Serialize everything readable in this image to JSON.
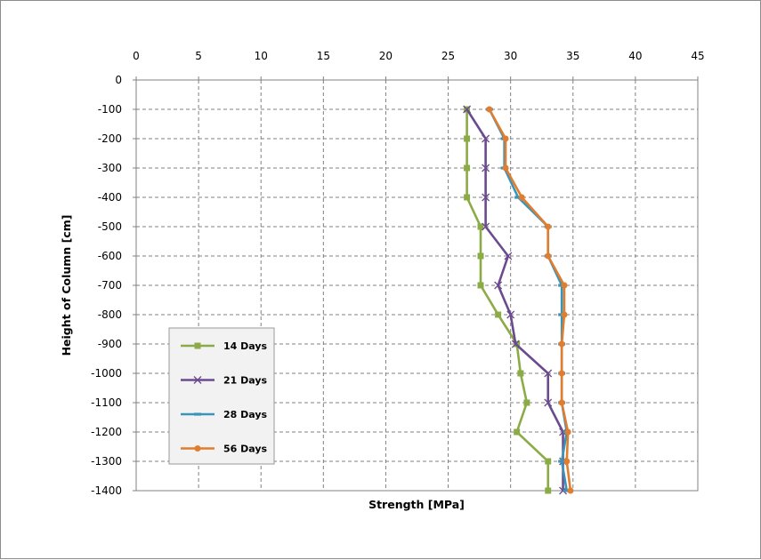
{
  "chart_data": {
    "type": "line",
    "title": "",
    "xlabel": "Strength [MPa]",
    "ylabel": "Height of Column [cm]",
    "xlim": [
      0,
      45
    ],
    "ylim": [
      -1400,
      0
    ],
    "x_ticks": [
      "0",
      "5",
      "10",
      "15",
      "20",
      "25",
      "30",
      "35",
      "40",
      "45"
    ],
    "y_ticks": [
      "0",
      "-100",
      "-200",
      "-300",
      "-400",
      "-500",
      "-600",
      "-700",
      "-800",
      "-900",
      "-1000",
      "-1100",
      "-1200",
      "-1300",
      "-1400"
    ],
    "x_axis_position": "top",
    "grid": true,
    "legend_position": "bottom-left",
    "heights": [
      -100,
      -200,
      -300,
      -400,
      -500,
      -600,
      -700,
      -800,
      -900,
      -1000,
      -1100,
      -1200,
      -1300,
      -1400
    ],
    "series": [
      {
        "name": "14 Days",
        "color": "#8bab47",
        "marker": "square",
        "values": [
          26.5,
          26.5,
          26.5,
          26.5,
          27.6,
          27.6,
          27.6,
          29.0,
          30.5,
          30.8,
          31.3,
          30.5,
          33.0,
          33.0
        ]
      },
      {
        "name": "21 Days",
        "color": "#6b4a8f",
        "marker": "x",
        "values": [
          26.5,
          28.0,
          28.0,
          28.0,
          28.0,
          29.8,
          29.0,
          30.0,
          30.4,
          33.0,
          33.0,
          34.2,
          34.2,
          34.2
        ]
      },
      {
        "name": "28 Days",
        "color": "#3a94b8",
        "marker": "dash",
        "values": [
          28.3,
          29.5,
          29.5,
          30.6,
          33.0,
          33.0,
          34.1,
          34.1,
          34.1,
          34.1,
          34.1,
          34.5,
          34.1,
          34.5
        ]
      },
      {
        "name": "56 Days",
        "color": "#e07d2e",
        "marker": "circle",
        "values": [
          28.3,
          29.6,
          29.6,
          30.9,
          33.0,
          33.0,
          34.3,
          34.3,
          34.1,
          34.1,
          34.1,
          34.6,
          34.5,
          34.8
        ]
      }
    ]
  }
}
